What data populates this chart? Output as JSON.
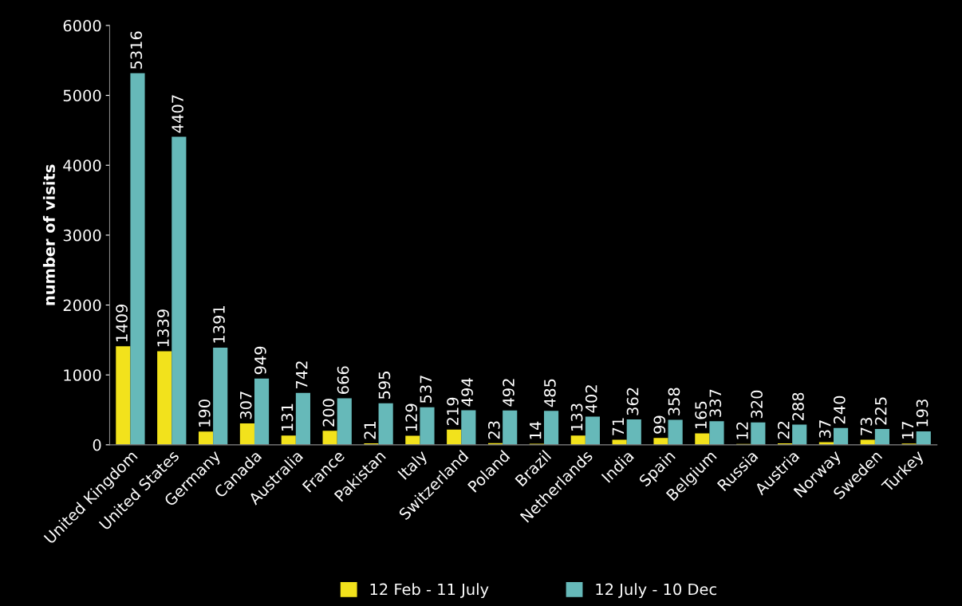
{
  "chart_data": {
    "type": "bar",
    "ylabel": "number of visits",
    "categories": [
      "United Kingdom",
      "United States",
      "Germany",
      "Canada",
      "Australia",
      "France",
      "Pakistan",
      "Italy",
      "Switzerland",
      "Poland",
      "Brazil",
      "Netherlands",
      "India",
      "Spain",
      "Belgium",
      "Russia",
      "Austria",
      "Norway",
      "Sweden",
      "Turkey"
    ],
    "series": [
      {
        "name": "12 Feb - 11 July",
        "color": "#f2e21c",
        "values": [
          1409,
          1339,
          190,
          307,
          131,
          200,
          21,
          129,
          219,
          23,
          14,
          133,
          71,
          99,
          165,
          12,
          22,
          37,
          73,
          17
        ]
      },
      {
        "name": "12 July - 10 Dec",
        "color": "#66b9b9",
        "values": [
          5316,
          4407,
          1391,
          949,
          742,
          666,
          595,
          537,
          494,
          492,
          485,
          402,
          362,
          358,
          337,
          320,
          288,
          240,
          225,
          193
        ]
      }
    ],
    "ylim": [
      0,
      6000
    ],
    "yticks": [
      0,
      1000,
      2000,
      3000,
      4000,
      5000,
      6000
    ],
    "data_labels": true,
    "grid": false,
    "legend": "bottom"
  }
}
